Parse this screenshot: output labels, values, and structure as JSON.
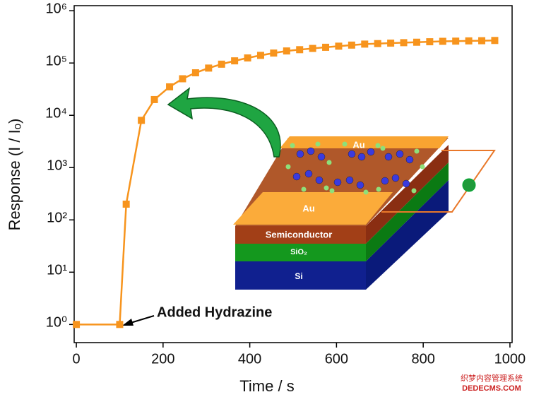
{
  "chart_data": {
    "type": "line",
    "xlabel": "Time / s",
    "ylabel": "Response (I / Iₒ)",
    "x": [
      0,
      100,
      115,
      150,
      180,
      215,
      245,
      275,
      305,
      335,
      365,
      395,
      425,
      455,
      485,
      515,
      545,
      575,
      605,
      635,
      665,
      695,
      725,
      755,
      785,
      815,
      845,
      875,
      905,
      935,
      965
    ],
    "series": [
      {
        "color": "#f7941d",
        "values": [
          1,
          1,
          200,
          8000,
          20000,
          35000,
          50000,
          65000,
          80000,
          95000,
          110000,
          125000,
          140000,
          155000,
          170000,
          180000,
          190000,
          200000,
          210000,
          220000,
          230000,
          235000,
          240000,
          245000,
          250000,
          255000,
          260000,
          262000,
          265000,
          267000,
          270000
        ]
      }
    ],
    "xlim": [
      -5,
      1005
    ],
    "xticks": [
      0,
      200,
      400,
      600,
      800,
      1000
    ],
    "ylim": [
      0.45,
      1250000
    ],
    "log_y": true,
    "yticks": [
      {
        "value": 1,
        "label": "10⁰"
      },
      {
        "value": 10,
        "label": "10¹"
      },
      {
        "value": 100,
        "label": "10²"
      },
      {
        "value": 1000,
        "label": "10³"
      },
      {
        "value": 10000,
        "label": "10⁴"
      },
      {
        "value": 100000,
        "label": "10⁵"
      },
      {
        "value": 1000000,
        "label": "10⁶"
      }
    ],
    "annotation": "Added Hydrazine",
    "inset_labels": [
      "Au",
      "Au",
      "Semiconductor",
      "SiO₂",
      "Si"
    ],
    "watermark": [
      "织梦内容管理系统",
      "DEDECMS.COM"
    ]
  }
}
